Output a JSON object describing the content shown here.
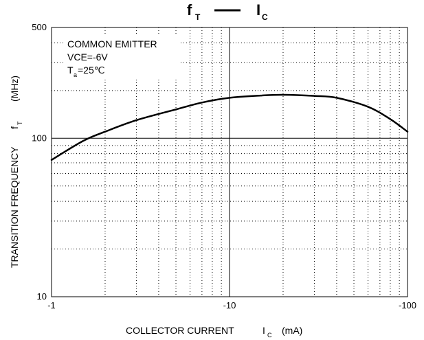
{
  "chart_data": {
    "type": "line",
    "title": {
      "y_symbol": "f",
      "y_sub": "T",
      "x_symbol": "I",
      "x_sub": "C"
    },
    "annotation": {
      "line1": "COMMON EMITTER",
      "line2": "VCE=-6V",
      "ta_symbol": "T",
      "ta_sub": "a",
      "ta_value": "=25℃"
    },
    "xlabel": {
      "main": "COLLECTOR CURRENT",
      "symbol": "I",
      "sub": "C",
      "unit": "(mA)"
    },
    "ylabel": {
      "main": "TRANSITION FREQUENCY",
      "symbol": "f",
      "sub": "T",
      "unit": "(MHz)"
    },
    "x_scale": "log",
    "y_scale": "log",
    "xlim": [
      -1,
      -100
    ],
    "ylim": [
      10,
      500
    ],
    "x_ticks": [
      {
        "value": -1,
        "label": "-1"
      },
      {
        "value": -10,
        "label": "-10"
      },
      {
        "value": -100,
        "label": "-100"
      }
    ],
    "y_ticks": [
      {
        "value": 10,
        "label": "10"
      },
      {
        "value": 100,
        "label": "100"
      },
      {
        "value": 500,
        "label": "500"
      }
    ],
    "grid": true,
    "series": [
      {
        "x": [
          -1,
          -1.5,
          -2,
          -3,
          -5,
          -7,
          -10,
          -15,
          -20,
          -30,
          -40,
          -60,
          -80,
          -100
        ],
        "y": [
          73,
          96,
          110,
          130,
          152,
          168,
          180,
          186,
          188,
          185,
          180,
          158,
          132,
          110
        ]
      }
    ]
  }
}
